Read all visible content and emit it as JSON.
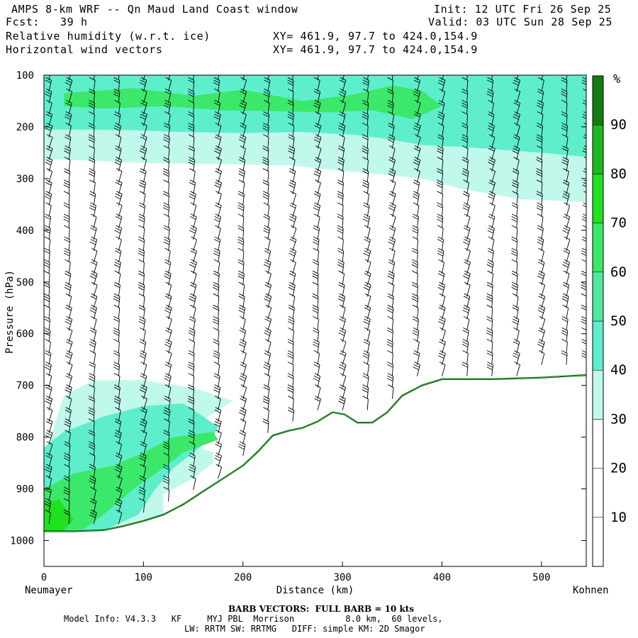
{
  "header": {
    "title": "AMPS 8-km WRF -- Qn Maud Land Coast window",
    "fcst": "Fcst:   39 h",
    "field1": "Relative humidity (w.r.t. ice)",
    "field2": "Horizontal wind vectors",
    "init": "Init: 12 UTC Fri 26 Sep 25",
    "valid": "Valid: 03 UTC Sun 28 Sep 25",
    "xy1": "XY= 461.9, 97.7 to 424.0,154.9",
    "xy2": "XY= 461.9, 97.7 to 424.0,154.9"
  },
  "footer": {
    "barb_note": "BARB VECTORS:  FULL BARB = 10 kts",
    "model_info_1": "Model Info: V4.3.3   KF     MYJ PBL  Morrison          8.0 km,  60 levels,",
    "model_info_2": "LW: RRTM SW: RRTMG   DIFF: simple KM: 2D Smagor"
  },
  "chart_data": {
    "type": "cross-section",
    "title": "Relative humidity (w.r.t. ice) and horizontal wind vectors",
    "xlabel": "Distance (km)",
    "ylabel": "Pressure (hPa)",
    "x_start_label": "Neumayer",
    "x_end_label": "Kohnen",
    "xlim": [
      0,
      545
    ],
    "ylim": [
      1050,
      100
    ],
    "x_ticks": [
      0,
      100,
      200,
      300,
      400,
      500
    ],
    "y_ticks": [
      100,
      200,
      300,
      400,
      500,
      600,
      700,
      800,
      900,
      1000
    ],
    "terrain_surface_pressure": [
      [
        0,
        982
      ],
      [
        30,
        982
      ],
      [
        60,
        980
      ],
      [
        80,
        972
      ],
      [
        100,
        962
      ],
      [
        120,
        950
      ],
      [
        140,
        930
      ],
      [
        160,
        905
      ],
      [
        180,
        880
      ],
      [
        200,
        855
      ],
      [
        215,
        828
      ],
      [
        230,
        797
      ],
      [
        245,
        788
      ],
      [
        260,
        782
      ],
      [
        275,
        770
      ],
      [
        290,
        752
      ],
      [
        302,
        756
      ],
      [
        315,
        772
      ],
      [
        330,
        772
      ],
      [
        345,
        752
      ],
      [
        360,
        720
      ],
      [
        380,
        700
      ],
      [
        400,
        688
      ],
      [
        450,
        688
      ],
      [
        500,
        685
      ],
      [
        545,
        680
      ]
    ],
    "colorbar": {
      "unit": "%",
      "levels": [
        10,
        20,
        30,
        40,
        50,
        60,
        70,
        80,
        90
      ],
      "colors": [
        "#ffffff",
        "#ffffff",
        "#ffffff",
        "#c0f8ec",
        "#5eeecc",
        "#52e8a0",
        "#3ce86a",
        "#20e020",
        "#1cb81c",
        "#127c12"
      ]
    },
    "rh_regions": [
      {
        "name": "upper-moist-layer-30",
        "min_rh": 30
      },
      {
        "name": "upper-moist-layer-40",
        "min_rh": 40
      },
      {
        "name": "upper-moist-layer-60",
        "min_rh": 60
      },
      {
        "name": "low-level-coastal-moist-30",
        "min_rh": 30
      },
      {
        "name": "low-level-coastal-moist-40",
        "min_rh": 40
      },
      {
        "name": "low-level-coastal-moist-60",
        "min_rh": 60
      },
      {
        "name": "low-level-coastal-moist-70",
        "min_rh": 70
      }
    ],
    "barb_columns_km": [
      5,
      25,
      50,
      75,
      100,
      125,
      150,
      175,
      200,
      225,
      250,
      275,
      300,
      325,
      350,
      375,
      400,
      425,
      450,
      475,
      500,
      525,
      545
    ],
    "barb_full_kts": 10
  }
}
